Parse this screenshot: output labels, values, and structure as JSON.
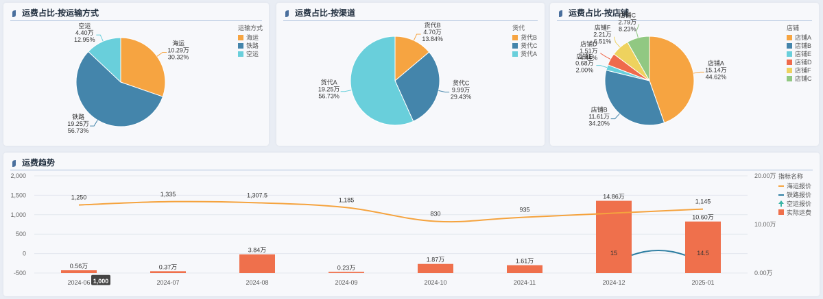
{
  "colors": {
    "orange": "#f6a441",
    "blue": "#4485ab",
    "cyan": "#69cfdb",
    "red": "#ef6a4c",
    "yellow": "#eed25e",
    "green": "#91c882",
    "bar": "#ef704c",
    "line_orange": "#f5a33e",
    "line_blue": "#2f7fa2",
    "panel_icon": "#4a6f9d"
  },
  "panels": {
    "transport": {
      "title": "运费占比-按运输方式",
      "chart_data": {
        "type": "pie",
        "legend_title": "运输方式",
        "slices": [
          {
            "name": "海运",
            "amount": "10.29万",
            "percent": 30.32,
            "percent_label": "30.32%",
            "color": "#f6a441"
          },
          {
            "name": "铁路",
            "amount": "19.25万",
            "percent": 56.73,
            "percent_label": "56.73%",
            "color": "#4485ab"
          },
          {
            "name": "空运",
            "amount": "4.40万",
            "percent": 12.95,
            "percent_label": "12.95%",
            "color": "#69cfdb"
          }
        ],
        "legend": [
          "海运",
          "铁路",
          "空运"
        ]
      }
    },
    "channel": {
      "title": "运费占比-按渠道",
      "chart_data": {
        "type": "pie",
        "legend_title": "货代",
        "slices": [
          {
            "name": "货代B",
            "amount": "4.70万",
            "percent": 13.84,
            "percent_label": "13.84%",
            "color": "#f6a441"
          },
          {
            "name": "货代C",
            "amount": "9.99万",
            "percent": 29.43,
            "percent_label": "29.43%",
            "color": "#4485ab"
          },
          {
            "name": "货代A",
            "amount": "19.25万",
            "percent": 56.73,
            "percent_label": "56.73%",
            "color": "#69cfdb"
          }
        ],
        "legend": [
          "货代B",
          "货代C",
          "货代A"
        ]
      }
    },
    "store": {
      "title": "运费占比-按店铺",
      "chart_data": {
        "type": "pie",
        "legend_title": "店铺",
        "slices": [
          {
            "name": "店铺A",
            "amount": "15.14万",
            "percent": 44.62,
            "percent_label": "44.62%",
            "color": "#f6a441"
          },
          {
            "name": "店铺B",
            "amount": "11.61万",
            "percent": 34.2,
            "percent_label": "34.20%",
            "color": "#4485ab"
          },
          {
            "name": "店铺E",
            "amount": "0.68万",
            "percent": 2.0,
            "percent_label": "2.00%",
            "color": "#69cfdb"
          },
          {
            "name": "店铺D",
            "amount": "1.51万",
            "percent": 4.44,
            "percent_label": "4.44%",
            "color": "#ef6a4c"
          },
          {
            "name": "店铺F",
            "amount": "2.21万",
            "percent": 6.51,
            "percent_label": "6.51%",
            "color": "#eed25e"
          },
          {
            "name": "店铺C",
            "amount": "2.79万",
            "percent": 8.23,
            "percent_label": "8.23%",
            "color": "#91c882"
          }
        ],
        "legend": [
          "店铺A",
          "店铺B",
          "店铺E",
          "店铺D",
          "店铺F",
          "店铺C"
        ]
      }
    },
    "trend": {
      "title": "运费趋势",
      "chart_data": {
        "type": "bar+line",
        "categories": [
          "2024-06",
          "2024-07",
          "2024-08",
          "2024-09",
          "2024-10",
          "2024-11",
          "2024-12",
          "2025-01"
        ],
        "left_axis": {
          "ticks": [
            "2,000",
            "1,500",
            "1,000",
            "500",
            "0",
            "-500"
          ],
          "min": -500,
          "max": 2000
        },
        "right_axis": {
          "ticks": [
            "20.00万",
            "10.00万",
            "0.00万"
          ],
          "min": 0,
          "max": 200000
        },
        "legend_title": "指标名称",
        "legend": [
          {
            "name": "海运报价",
            "kind": "line",
            "color": "#f5a33e"
          },
          {
            "name": "铁路报价",
            "kind": "line",
            "color": "#2f7fa2"
          },
          {
            "name": "空运报价",
            "kind": "marker",
            "color": "#3ab5a5"
          },
          {
            "name": "实际运费",
            "kind": "bar",
            "color": "#ef704c"
          }
        ],
        "series": [
          {
            "name": "海运报价",
            "axis": "left",
            "values": [
              1250,
              1335,
              1307.5,
              1185,
              830,
              935,
              null,
              1145
            ],
            "labels": [
              "1,250",
              "1,335",
              "1,307.5",
              "1,185",
              "830",
              "935",
              "",
              "1,145"
            ]
          },
          {
            "name": "铁路报价",
            "axis": "left",
            "values": [
              null,
              null,
              null,
              null,
              null,
              null,
              15,
              14.5
            ],
            "labels": [
              "",
              "",
              "",
              "",
              "",
              "",
              "15",
              "14.5"
            ]
          },
          {
            "name": "实际运费",
            "axis": "right",
            "values": [
              5600,
              3700,
              38400,
              2300,
              18700,
              16100,
              148600,
              106000
            ],
            "labels": [
              "0.56万",
              "0.37万",
              "3.84万",
              "0.23万",
              "1.87万",
              "1.61万",
              "14.86万",
              "10.60万"
            ]
          }
        ],
        "tooltip": "1,000"
      }
    }
  }
}
